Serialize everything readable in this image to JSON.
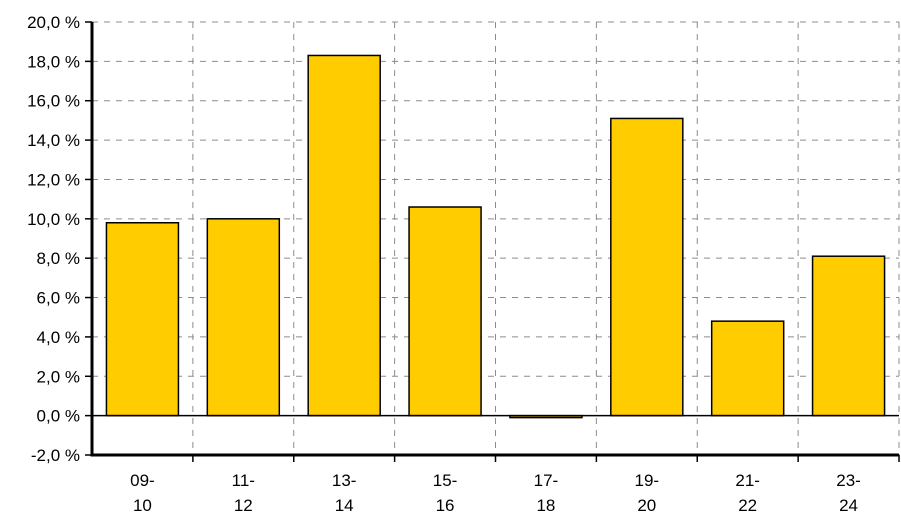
{
  "chart_data": {
    "type": "bar",
    "categories": [
      [
        "09-",
        "10"
      ],
      [
        "11-",
        "12"
      ],
      [
        "13-",
        "14"
      ],
      [
        "15-",
        "16"
      ],
      [
        "17-",
        "18"
      ],
      [
        "19-",
        "20"
      ],
      [
        "21-",
        "22"
      ],
      [
        "23-",
        "24"
      ]
    ],
    "values": [
      9.8,
      10.0,
      18.3,
      10.6,
      -0.1,
      15.1,
      4.8,
      8.1
    ],
    "ylim": [
      -2,
      20
    ],
    "yticks": [
      -2,
      0,
      2,
      4,
      6,
      8,
      10,
      12,
      14,
      16,
      18,
      20
    ],
    "ytick_labels": [
      "-2,0 %",
      "0,0 %",
      "2,0 %",
      "4,0 %",
      "6,0 %",
      "8,0 %",
      "10,0 %",
      "12,0 %",
      "14,0 %",
      "16,0 %",
      "18,0 %",
      "20,0 %"
    ],
    "bar_color": "#ffcc00",
    "grid": true,
    "title": "",
    "xlabel": "",
    "ylabel": ""
  }
}
